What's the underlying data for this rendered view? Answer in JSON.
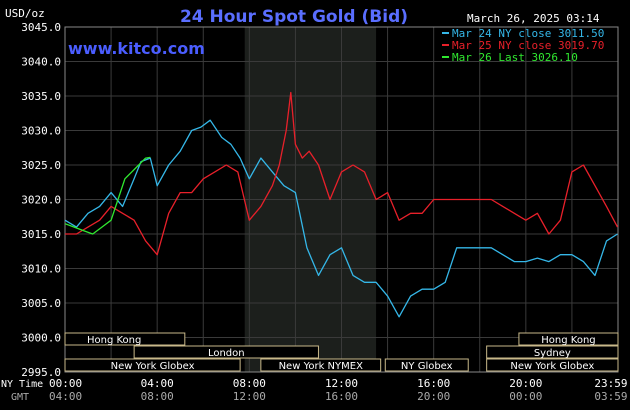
{
  "chart_data": {
    "type": "line",
    "title": "24 Hour Spot Gold (Bid)",
    "ylabel": "USD/oz",
    "source": "www.kitco.com",
    "date_stamp": "March 26, 2025 03:14",
    "ylim": [
      2995.0,
      3045.0
    ],
    "yticks": [
      "2995.0",
      "3000.0",
      "3005.0",
      "3010.0",
      "3015.0",
      "3020.0",
      "3025.0",
      "3030.0",
      "3035.0",
      "3040.0",
      "3045.0"
    ],
    "x_range_hours": [
      0,
      24
    ],
    "row1_label": "NY Time",
    "row2_label": "GMT",
    "x_ticks_ny": [
      "00:00",
      "04:00",
      "08:00",
      "12:00",
      "16:00",
      "20:00",
      "23:59"
    ],
    "x_ticks_gmt": [
      "04:00",
      "08:00",
      "12:00",
      "16:00",
      "20:00",
      "00:00",
      "03:59"
    ],
    "grid": true,
    "colors": {
      "background": "#000000",
      "plot_bg": "#000000",
      "shaded": "#1c1f1c",
      "grid": "#3a3a3a",
      "title": "#5a6eff",
      "source": "#4a5dff",
      "axis_text": "#ffffff",
      "session_border": "#c9b98a"
    },
    "shaded_hours": [
      7.8,
      13.5
    ],
    "legend": [
      {
        "label": "Mar 24 NY close 3011.50",
        "color": "#35b7e8"
      },
      {
        "label": "Mar 25 NY close 3019.70",
        "color": "#e8202a"
      },
      {
        "label": "Mar 26 Last 3026.10",
        "color": "#30e830"
      }
    ],
    "series": [
      {
        "name": "Mar 24 NY close 3011.50",
        "color": "#35b7e8",
        "x": [
          0,
          0.5,
          1,
          1.5,
          2,
          2.5,
          3,
          3.3,
          3.7,
          4,
          4.5,
          5,
          5.5,
          5.9,
          6.3,
          6.8,
          7.2,
          7.6,
          8,
          8.5,
          9,
          9.5,
          10,
          10.5,
          11,
          11.5,
          12,
          12.5,
          13,
          13.5,
          14,
          14.5,
          15,
          15.5,
          16,
          16.5,
          17,
          17.5,
          18,
          18.5,
          19,
          19.5,
          20,
          20.5,
          21,
          21.5,
          22,
          22.5,
          23,
          23.5,
          23.98
        ],
        "y": [
          3017,
          3016,
          3018,
          3019,
          3021,
          3019,
          3023,
          3025.5,
          3026,
          3022,
          3025,
          3027,
          3030,
          3030.5,
          3031.5,
          3029,
          3028,
          3026,
          3023,
          3026,
          3024,
          3022,
          3021,
          3013,
          3009,
          3012,
          3013,
          3009,
          3008,
          3008,
          3006,
          3003,
          3006,
          3007,
          3007,
          3008,
          3013,
          3013,
          3013,
          3013,
          3012,
          3011,
          3011,
          3011.5,
          3011,
          3012,
          3012,
          3011,
          3009,
          3014,
          3015
        ]
      },
      {
        "name": "Mar 25 NY close 3019.70",
        "color": "#e8202a",
        "x": [
          0,
          0.5,
          1,
          1.5,
          2,
          2.5,
          3,
          3.5,
          4,
          4.5,
          5,
          5.5,
          6,
          6.5,
          7,
          7.5,
          8,
          8.5,
          9,
          9.3,
          9.6,
          9.8,
          10,
          10.3,
          10.6,
          11,
          11.5,
          12,
          12.5,
          13,
          13.5,
          14,
          14.5,
          15,
          15.5,
          16,
          16.5,
          17,
          17.5,
          18,
          18.5,
          19,
          19.5,
          20,
          20.5,
          21,
          21.5,
          22,
          22.5,
          23,
          23.5,
          23.98
        ],
        "y": [
          3015,
          3015,
          3016,
          3017,
          3019,
          3018,
          3017,
          3014,
          3012,
          3018,
          3021,
          3021,
          3023,
          3024,
          3025,
          3024,
          3017,
          3019,
          3022,
          3025,
          3030,
          3035.5,
          3028,
          3026,
          3027,
          3025,
          3020,
          3024,
          3025,
          3024,
          3020,
          3021,
          3017,
          3018,
          3018,
          3020,
          3020,
          3020,
          3020,
          3020,
          3020,
          3019,
          3018,
          3017,
          3018,
          3015,
          3017,
          3024,
          3025,
          3022,
          3019,
          3016
        ]
      },
      {
        "name": "Mar 26 Last 3026.10",
        "color": "#30e830",
        "x": [
          0,
          0.4,
          0.8,
          1.2,
          1.6,
          2,
          2.3,
          2.6,
          2.9,
          3.2,
          3.5,
          3.7
        ],
        "y": [
          3016.5,
          3016,
          3015.5,
          3015,
          3016,
          3017,
          3020,
          3023,
          3024,
          3025,
          3026,
          3026.1
        ]
      }
    ],
    "sessions": [
      {
        "label": "Hong Kong",
        "start": 0,
        "end": 5.2,
        "row": 0,
        "label_align": "left"
      },
      {
        "label": "Hong Kong",
        "start": 19.7,
        "end": 24,
        "row": 0,
        "label_align": "center"
      },
      {
        "label": "London",
        "start": 3,
        "end": 11,
        "row": 1,
        "label_align": "center"
      },
      {
        "label": "Sydney",
        "start": 18.3,
        "end": 24,
        "row": 1,
        "label_align": "center"
      },
      {
        "label": "New York Globex",
        "start": 0,
        "end": 7.6,
        "row": 2,
        "label_align": "center"
      },
      {
        "label": "New York NYMEX",
        "start": 8.5,
        "end": 13.7,
        "row": 2,
        "label_align": "center"
      },
      {
        "label": "NY Globex",
        "start": 13.9,
        "end": 17.5,
        "row": 2,
        "label_align": "center"
      },
      {
        "label": "New York Globex",
        "start": 18.3,
        "end": 24,
        "row": 2,
        "label_align": "center"
      }
    ]
  }
}
